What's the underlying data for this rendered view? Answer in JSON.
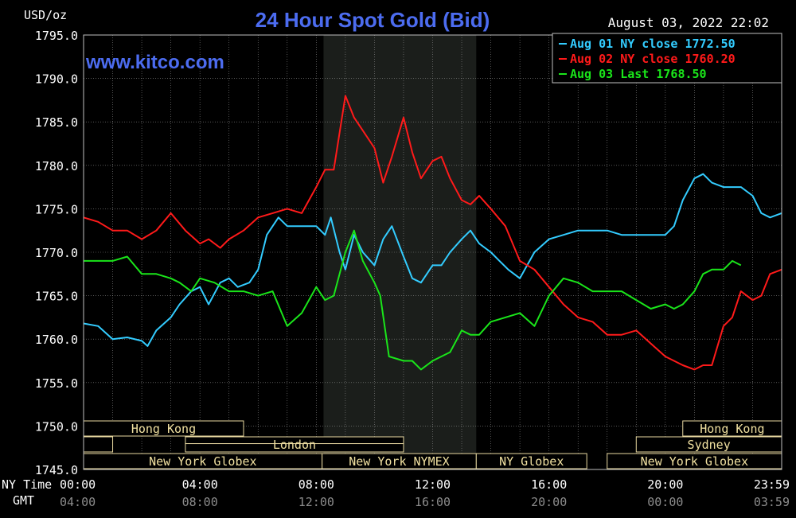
{
  "chart_data": {
    "type": "line",
    "title": "24 Hour Spot Gold (Bid)",
    "ylabel": "USD/oz",
    "watermark": "www.kitco.com",
    "timestamp": "August 03, 2022 22:02",
    "xlabel_primary": "NY Time",
    "xlabel_secondary": "GMT",
    "ylim": [
      1745.0,
      1795.0
    ],
    "y_ticks": [
      "1795.0",
      "1790.0",
      "1785.0",
      "1780.0",
      "1775.0",
      "1770.0",
      "1765.0",
      "1760.0",
      "1755.0",
      "1750.0",
      "1745.0"
    ],
    "x_ticks_ny": [
      "00:00",
      "04:00",
      "08:00",
      "12:00",
      "16:00",
      "20:00",
      "23:59"
    ],
    "x_ticks_gmt": [
      "04:00",
      "08:00",
      "12:00",
      "16:00",
      "20:00",
      "00:00",
      "03:59"
    ],
    "x_tick_hours": [
      0,
      4,
      8,
      12,
      16,
      20,
      24
    ],
    "grid": true,
    "legend_position": "top-right",
    "shaded_session_hours": [
      8.25,
      13.5
    ],
    "sessions": [
      {
        "label": "Hong Kong",
        "row": 0,
        "start": 0,
        "end": 5.5,
        "dual": false
      },
      {
        "label": "Hong Kong",
        "row": 0,
        "start": 20.6,
        "end": 24,
        "dual": false
      },
      {
        "label": "",
        "row": 1,
        "start": 0,
        "end": 1,
        "dual": false
      },
      {
        "label": "London",
        "row": 1,
        "start": 3.5,
        "end": 11,
        "dual": true
      },
      {
        "label": "Sydney",
        "row": 1,
        "start": 19,
        "end": 24,
        "dual": false
      },
      {
        "label": "New York Globex",
        "row": 2,
        "start": 0,
        "end": 8.2,
        "dual": false
      },
      {
        "label": "New York NYMEX",
        "row": 2,
        "start": 8.2,
        "end": 13.5,
        "dual": false
      },
      {
        "label": "NY Globex",
        "row": 2,
        "start": 13.5,
        "end": 17.3,
        "dual": false
      },
      {
        "label": "New York Globex",
        "row": 2,
        "start": 18,
        "end": 24,
        "dual": false
      }
    ],
    "series": [
      {
        "name": "Aug 01 NY close 1772.50",
        "color": "#33ccff",
        "x": [
          0,
          0.5,
          1,
          1.5,
          2,
          2.2,
          2.5,
          3,
          3.3,
          3.7,
          4,
          4.3,
          4.7,
          5,
          5.3,
          5.7,
          6,
          6.3,
          6.7,
          7,
          7.5,
          8,
          8.3,
          8.5,
          8.8,
          9,
          9.3,
          9.6,
          10,
          10.3,
          10.6,
          11,
          11.3,
          11.6,
          12,
          12.3,
          12.6,
          13,
          13.3,
          13.6,
          14,
          14.3,
          14.6,
          15,
          15.5,
          16,
          16.5,
          17,
          17.5,
          18,
          18.5,
          19,
          19.5,
          20,
          20.3,
          20.6,
          21,
          21.3,
          21.6,
          22,
          22.3,
          22.6,
          23,
          23.3,
          23.6,
          24
        ],
        "values": [
          1761.8,
          1761.5,
          1760.0,
          1760.2,
          1759.8,
          1759.2,
          1761.0,
          1762.5,
          1764.0,
          1765.5,
          1766.0,
          1764.0,
          1766.5,
          1767.0,
          1766.0,
          1766.5,
          1768.0,
          1772.0,
          1774.0,
          1773.0,
          1773.0,
          1773.0,
          1772.0,
          1774.0,
          1770.0,
          1768.0,
          1772.0,
          1770.0,
          1768.5,
          1771.5,
          1773.0,
          1769.5,
          1767.0,
          1766.5,
          1768.5,
          1768.5,
          1770.0,
          1771.5,
          1772.5,
          1771.0,
          1770.0,
          1769.0,
          1768.0,
          1767.0,
          1770.0,
          1771.5,
          1772.0,
          1772.5,
          1772.5,
          1772.5,
          1772.0,
          1772.0,
          1772.0,
          1772.0,
          1773.0,
          1776.0,
          1778.5,
          1779.0,
          1778.0,
          1777.5,
          1777.5,
          1777.5,
          1776.5,
          1774.5,
          1774.0,
          1774.5
        ]
      },
      {
        "name": "Aug 02 NY close 1760.20",
        "color": "#ff1a1a",
        "x": [
          0,
          0.5,
          1,
          1.5,
          2,
          2.5,
          3,
          3.5,
          4,
          4.3,
          4.7,
          5,
          5.5,
          6,
          6.5,
          7,
          7.5,
          8,
          8.3,
          8.6,
          9,
          9.3,
          9.6,
          10,
          10.3,
          10.6,
          11,
          11.3,
          11.6,
          12,
          12.3,
          12.6,
          13,
          13.3,
          13.6,
          14,
          14.5,
          15,
          15.5,
          16,
          16.5,
          17,
          17.5,
          18,
          18.5,
          19,
          19.5,
          20,
          20.3,
          20.6,
          21,
          21.3,
          21.6,
          22,
          22.3,
          22.6,
          23,
          23.3,
          23.6,
          24
        ],
        "values": [
          1774.0,
          1773.5,
          1772.5,
          1772.5,
          1771.5,
          1772.5,
          1774.5,
          1772.5,
          1771.0,
          1771.5,
          1770.5,
          1771.5,
          1772.5,
          1774.0,
          1774.5,
          1775.0,
          1774.5,
          1777.5,
          1779.5,
          1779.5,
          1788.0,
          1785.5,
          1784.0,
          1782.0,
          1778.0,
          1781.0,
          1785.5,
          1781.5,
          1778.5,
          1780.5,
          1781.0,
          1778.5,
          1776.0,
          1775.5,
          1776.5,
          1775.0,
          1773.0,
          1769.0,
          1768.0,
          1766.0,
          1764.0,
          1762.5,
          1762.0,
          1760.5,
          1760.5,
          1761.0,
          1759.5,
          1758.0,
          1757.5,
          1757.0,
          1756.5,
          1757.0,
          1757.0,
          1761.5,
          1762.5,
          1765.5,
          1764.5,
          1765.0,
          1767.5,
          1768.0
        ]
      },
      {
        "name": "Aug 03 Last 1768.50",
        "color": "#1ae51a",
        "x": [
          0,
          0.5,
          1,
          1.5,
          2,
          2.5,
          3,
          3.3,
          3.7,
          4,
          4.5,
          5,
          5.5,
          6,
          6.5,
          7,
          7.5,
          8,
          8.3,
          8.6,
          9,
          9.3,
          9.6,
          10,
          10.2,
          10.5,
          11,
          11.3,
          11.6,
          12,
          12.3,
          12.6,
          13,
          13.3,
          13.6,
          14,
          14.5,
          15,
          15.5,
          16,
          16.5,
          17,
          17.5,
          18,
          18.5,
          19,
          19.5,
          20,
          20.3,
          20.6,
          21,
          21.3,
          21.6,
          22,
          22.3,
          22.6
        ],
        "values": [
          1769.0,
          1769.0,
          1769.0,
          1769.5,
          1767.5,
          1767.5,
          1767.0,
          1766.5,
          1765.5,
          1767.0,
          1766.5,
          1765.5,
          1765.5,
          1765.0,
          1765.5,
          1761.5,
          1763.0,
          1766.0,
          1764.5,
          1765.0,
          1770.0,
          1772.5,
          1769.0,
          1766.5,
          1765.0,
          1758.0,
          1757.5,
          1757.5,
          1756.5,
          1757.5,
          1758.0,
          1758.5,
          1761.0,
          1760.5,
          1760.5,
          1762.0,
          1762.5,
          1763.0,
          1761.5,
          1765.0,
          1767.0,
          1766.5,
          1765.5,
          1765.5,
          1765.5,
          1764.5,
          1763.5,
          1764.0,
          1763.5,
          1764.0,
          1765.5,
          1767.5,
          1768.0,
          1768.0,
          1769.0,
          1768.5
        ]
      }
    ]
  }
}
